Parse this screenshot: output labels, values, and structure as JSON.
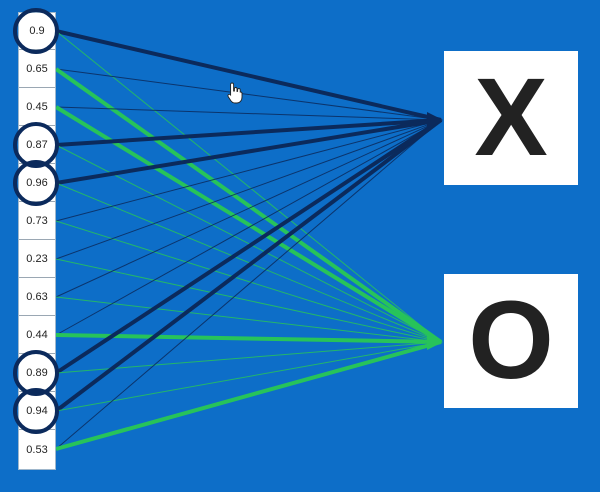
{
  "inputs": [
    {
      "value": "0.9",
      "highlighted": true
    },
    {
      "value": "0.65",
      "highlighted": false
    },
    {
      "value": "0.45",
      "highlighted": false
    },
    {
      "value": "0.87",
      "highlighted": true
    },
    {
      "value": "0.96",
      "highlighted": true
    },
    {
      "value": "0.73",
      "highlighted": false
    },
    {
      "value": "0.23",
      "highlighted": false
    },
    {
      "value": "0.63",
      "highlighted": false
    },
    {
      "value": "0.44",
      "highlighted": false
    },
    {
      "value": "0.89",
      "highlighted": true
    },
    {
      "value": "0.94",
      "highlighted": true
    },
    {
      "value": "0.53",
      "highlighted": false
    }
  ],
  "outputs": [
    {
      "label": "X",
      "wire_color": "#0b2a5c"
    },
    {
      "label": "O",
      "wire_color": "#27c35a"
    }
  ],
  "colors": {
    "background": "#0d6ec8",
    "ring": "#0b2a5c"
  }
}
